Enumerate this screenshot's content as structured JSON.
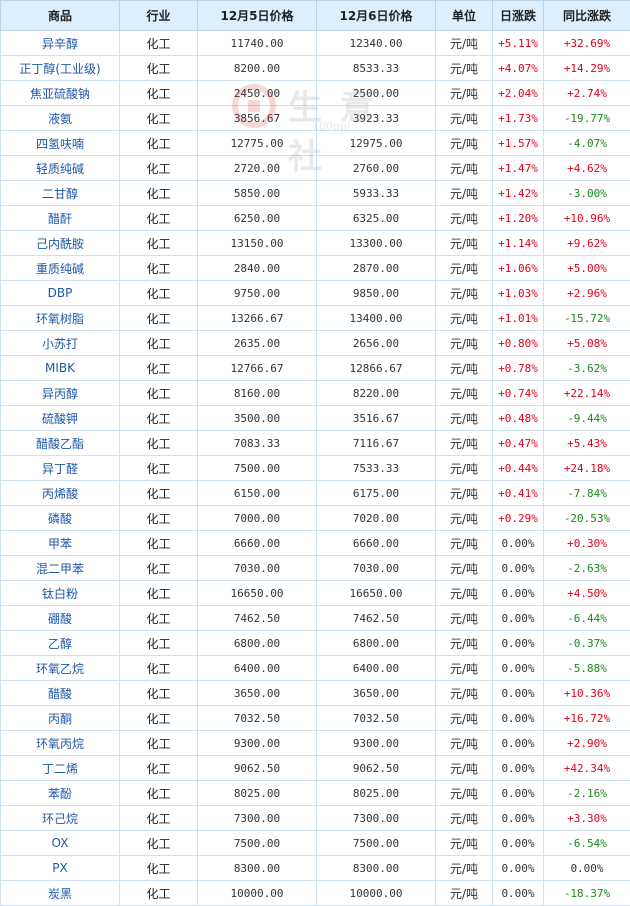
{
  "header": {
    "name": "商品",
    "industry": "行业",
    "price1": "12月5日价格",
    "price2": "12月6日价格",
    "unit": "单位",
    "day_change": "日涨跌",
    "yoy_change": "同比涨跌"
  },
  "watermark": {
    "text": "生意社",
    "url": "100ppi"
  },
  "colors": {
    "up": "#e0001b",
    "down": "#178a1b",
    "link": "#1f57a8",
    "header_bg": "#ddeefc"
  },
  "rows": [
    {
      "name": "异辛醇",
      "industry": "化工",
      "price1": "11740.00",
      "price2": "12340.00",
      "unit": "元/吨",
      "day": "+5.11%",
      "yoy": "+32.69%"
    },
    {
      "name": "正丁醇(工业级)",
      "industry": "化工",
      "price1": "8200.00",
      "price2": "8533.33",
      "unit": "元/吨",
      "day": "+4.07%",
      "yoy": "+14.29%"
    },
    {
      "name": "焦亚硫酸钠",
      "industry": "化工",
      "price1": "2450.00",
      "price2": "2500.00",
      "unit": "元/吨",
      "day": "+2.04%",
      "yoy": "+2.74%"
    },
    {
      "name": "液氨",
      "industry": "化工",
      "price1": "3856.67",
      "price2": "3923.33",
      "unit": "元/吨",
      "day": "+1.73%",
      "yoy": "-19.77%"
    },
    {
      "name": "四氢呋喃",
      "industry": "化工",
      "price1": "12775.00",
      "price2": "12975.00",
      "unit": "元/吨",
      "day": "+1.57%",
      "yoy": "-4.07%"
    },
    {
      "name": "轻质纯碱",
      "industry": "化工",
      "price1": "2720.00",
      "price2": "2760.00",
      "unit": "元/吨",
      "day": "+1.47%",
      "yoy": "+4.62%"
    },
    {
      "name": "二甘醇",
      "industry": "化工",
      "price1": "5850.00",
      "price2": "5933.33",
      "unit": "元/吨",
      "day": "+1.42%",
      "yoy": "-3.00%"
    },
    {
      "name": "醋酐",
      "industry": "化工",
      "price1": "6250.00",
      "price2": "6325.00",
      "unit": "元/吨",
      "day": "+1.20%",
      "yoy": "+10.96%"
    },
    {
      "name": "己内酰胺",
      "industry": "化工",
      "price1": "13150.00",
      "price2": "13300.00",
      "unit": "元/吨",
      "day": "+1.14%",
      "yoy": "+9.62%"
    },
    {
      "name": "重质纯碱",
      "industry": "化工",
      "price1": "2840.00",
      "price2": "2870.00",
      "unit": "元/吨",
      "day": "+1.06%",
      "yoy": "+5.00%"
    },
    {
      "name": "DBP",
      "industry": "化工",
      "price1": "9750.00",
      "price2": "9850.00",
      "unit": "元/吨",
      "day": "+1.03%",
      "yoy": "+2.96%"
    },
    {
      "name": "环氧树脂",
      "industry": "化工",
      "price1": "13266.67",
      "price2": "13400.00",
      "unit": "元/吨",
      "day": "+1.01%",
      "yoy": "-15.72%"
    },
    {
      "name": "小苏打",
      "industry": "化工",
      "price1": "2635.00",
      "price2": "2656.00",
      "unit": "元/吨",
      "day": "+0.80%",
      "yoy": "+5.08%"
    },
    {
      "name": "MIBK",
      "industry": "化工",
      "price1": "12766.67",
      "price2": "12866.67",
      "unit": "元/吨",
      "day": "+0.78%",
      "yoy": "-3.62%"
    },
    {
      "name": "异丙醇",
      "industry": "化工",
      "price1": "8160.00",
      "price2": "8220.00",
      "unit": "元/吨",
      "day": "+0.74%",
      "yoy": "+22.14%"
    },
    {
      "name": "硫酸钾",
      "industry": "化工",
      "price1": "3500.00",
      "price2": "3516.67",
      "unit": "元/吨",
      "day": "+0.48%",
      "yoy": "-9.44%"
    },
    {
      "name": "醋酸乙酯",
      "industry": "化工",
      "price1": "7083.33",
      "price2": "7116.67",
      "unit": "元/吨",
      "day": "+0.47%",
      "yoy": "+5.43%"
    },
    {
      "name": "异丁醛",
      "industry": "化工",
      "price1": "7500.00",
      "price2": "7533.33",
      "unit": "元/吨",
      "day": "+0.44%",
      "yoy": "+24.18%"
    },
    {
      "name": "丙烯酸",
      "industry": "化工",
      "price1": "6150.00",
      "price2": "6175.00",
      "unit": "元/吨",
      "day": "+0.41%",
      "yoy": "-7.84%"
    },
    {
      "name": "磷酸",
      "industry": "化工",
      "price1": "7000.00",
      "price2": "7020.00",
      "unit": "元/吨",
      "day": "+0.29%",
      "yoy": "-20.53%"
    },
    {
      "name": "甲苯",
      "industry": "化工",
      "price1": "6660.00",
      "price2": "6660.00",
      "unit": "元/吨",
      "day": "0.00%",
      "yoy": "+0.30%"
    },
    {
      "name": "混二甲苯",
      "industry": "化工",
      "price1": "7030.00",
      "price2": "7030.00",
      "unit": "元/吨",
      "day": "0.00%",
      "yoy": "-2.63%"
    },
    {
      "name": "钛白粉",
      "industry": "化工",
      "price1": "16650.00",
      "price2": "16650.00",
      "unit": "元/吨",
      "day": "0.00%",
      "yoy": "+4.50%"
    },
    {
      "name": "硼酸",
      "industry": "化工",
      "price1": "7462.50",
      "price2": "7462.50",
      "unit": "元/吨",
      "day": "0.00%",
      "yoy": "-6.44%"
    },
    {
      "name": "乙醇",
      "industry": "化工",
      "price1": "6800.00",
      "price2": "6800.00",
      "unit": "元/吨",
      "day": "0.00%",
      "yoy": "-0.37%"
    },
    {
      "name": "环氧乙烷",
      "industry": "化工",
      "price1": "6400.00",
      "price2": "6400.00",
      "unit": "元/吨",
      "day": "0.00%",
      "yoy": "-5.88%"
    },
    {
      "name": "醋酸",
      "industry": "化工",
      "price1": "3650.00",
      "price2": "3650.00",
      "unit": "元/吨",
      "day": "0.00%",
      "yoy": "+10.36%"
    },
    {
      "name": "丙酮",
      "industry": "化工",
      "price1": "7032.50",
      "price2": "7032.50",
      "unit": "元/吨",
      "day": "0.00%",
      "yoy": "+16.72%"
    },
    {
      "name": "环氧丙烷",
      "industry": "化工",
      "price1": "9300.00",
      "price2": "9300.00",
      "unit": "元/吨",
      "day": "0.00%",
      "yoy": "+2.90%"
    },
    {
      "name": "丁二烯",
      "industry": "化工",
      "price1": "9062.50",
      "price2": "9062.50",
      "unit": "元/吨",
      "day": "0.00%",
      "yoy": "+42.34%"
    },
    {
      "name": "苯酚",
      "industry": "化工",
      "price1": "8025.00",
      "price2": "8025.00",
      "unit": "元/吨",
      "day": "0.00%",
      "yoy": "-2.16%"
    },
    {
      "name": "环己烷",
      "industry": "化工",
      "price1": "7300.00",
      "price2": "7300.00",
      "unit": "元/吨",
      "day": "0.00%",
      "yoy": "+3.30%"
    },
    {
      "name": "OX",
      "industry": "化工",
      "price1": "7500.00",
      "price2": "7500.00",
      "unit": "元/吨",
      "day": "0.00%",
      "yoy": "-6.54%"
    },
    {
      "name": "PX",
      "industry": "化工",
      "price1": "8300.00",
      "price2": "8300.00",
      "unit": "元/吨",
      "day": "0.00%",
      "yoy": "0.00%"
    },
    {
      "name": "炭黑",
      "industry": "化工",
      "price1": "10000.00",
      "price2": "10000.00",
      "unit": "元/吨",
      "day": "0.00%",
      "yoy": "-18.37%"
    }
  ]
}
